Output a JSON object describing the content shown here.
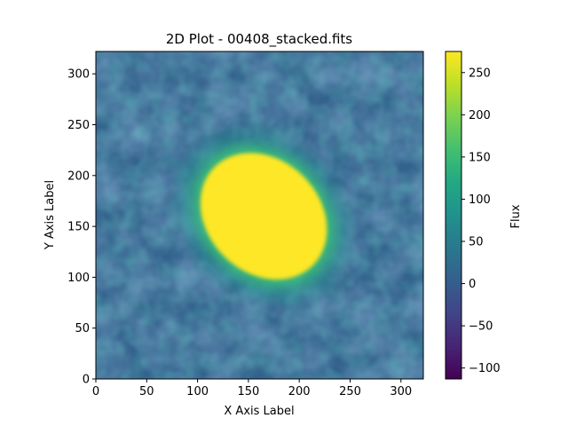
{
  "chart_data": {
    "type": "heatmap",
    "title": "2D Plot - 00408_stacked.fits",
    "xlabel": "X Axis Label",
    "ylabel": "Y Axis Label",
    "colorbar_label": "Flux",
    "colormap": "viridis",
    "xlim": [
      0,
      322
    ],
    "ylim": [
      0,
      322
    ],
    "xticks": [
      0,
      50,
      100,
      150,
      200,
      250,
      300
    ],
    "yticks": [
      0,
      50,
      100,
      150,
      200,
      250,
      300
    ],
    "clim": [
      -113,
      275
    ],
    "cbar_ticks": [
      -100,
      -50,
      0,
      50,
      100,
      150,
      200,
      250
    ],
    "background_flux": 40,
    "source": {
      "center_x": 165,
      "center_y": 160,
      "semi_major": 68,
      "semi_minor": 55,
      "angle_deg": -45,
      "flux": 275
    },
    "grid": false,
    "legend": "none"
  }
}
